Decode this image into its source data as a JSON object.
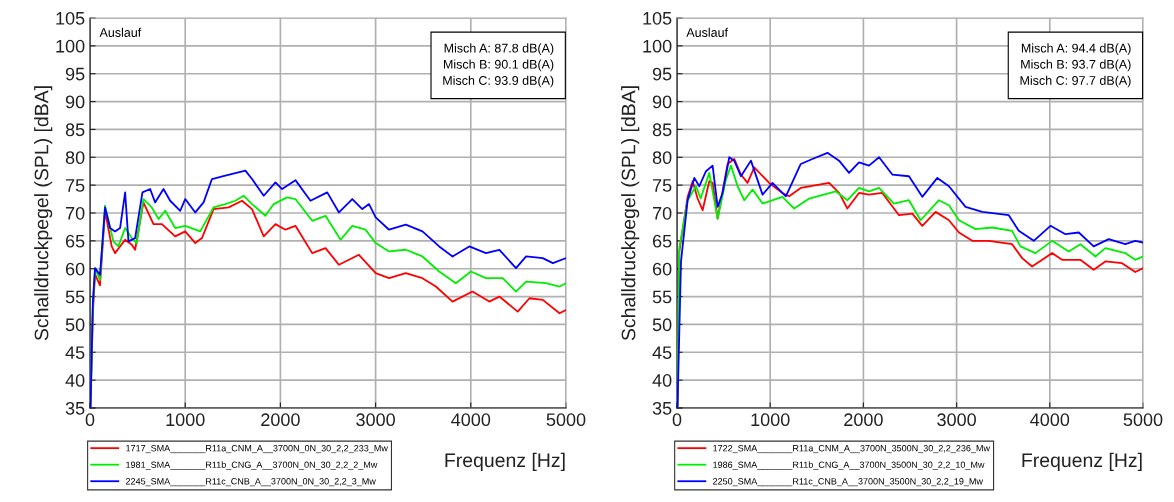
{
  "chart_data": [
    {
      "type": "line",
      "xlabel": "Frequenz [Hz]",
      "ylabel": "Schalldruckpegel (SPL) [dBA]",
      "annotations": [
        "Auslauf",
        "Misch A: 87.8 dB(A)\nMisch B: 90.1 dB(A)\nMisch C: 93.9 dB(A)"
      ],
      "xlim": [
        0,
        5000
      ],
      "xticks": [
        0,
        1000,
        2000,
        3000,
        4000,
        5000
      ],
      "ylim": [
        35,
        105
      ],
      "yticks": [
        35,
        40,
        45,
        50,
        55,
        60,
        65,
        70,
        75,
        80,
        85,
        90,
        95,
        100,
        105
      ],
      "grid": true,
      "legend": "bottom",
      "line_style": "solid",
      "marker": "none",
      "series": [
        {
          "name": "1717_SMA_______R11a_CNM_A__3700N_0N_30_2,2_233_Mw",
          "color": "#ff0000",
          "x": [
            5,
            30,
            53,
            105,
            158,
            228,
            263,
            369,
            439,
            474,
            561,
            667,
            755,
            895,
            1000,
            1106,
            1176,
            1298,
            1456,
            1597,
            1702,
            1825,
            1948,
            2053,
            2158,
            2334,
            2474,
            2615,
            2825,
            3001,
            3141,
            3317,
            3492,
            3633,
            3808,
            4018,
            4194,
            4300,
            4493,
            4616,
            4756,
            4932,
            5000
          ],
          "values": [
            35,
            52,
            59,
            57,
            70.4,
            64.0,
            62.8,
            65.2,
            64.3,
            63.4,
            71.9,
            68.0,
            68.0,
            65.8,
            66.7,
            64.6,
            65.5,
            70.7,
            71.0,
            72.2,
            70.7,
            65.8,
            68.0,
            67.0,
            67.7,
            62.8,
            63.7,
            60.7,
            62.5,
            59.2,
            58.3,
            59.2,
            58.3,
            56.8,
            54.1,
            55.9,
            54.1,
            55.0,
            52.3,
            54.7,
            54.4,
            52.0,
            52.6
          ]
        },
        {
          "name": "1981_SMA_______R11b_CNG_A__3700N_0N_30_2,2_2_Mw",
          "color": "#00ee00",
          "x": [
            5,
            30,
            53,
            105,
            158,
            246,
            298,
            369,
            439,
            491,
            561,
            649,
            720,
            790,
            895,
            1000,
            1158,
            1298,
            1421,
            1527,
            1614,
            1702,
            1842,
            1930,
            2070,
            2158,
            2334,
            2474,
            2632,
            2755,
            2895,
            3001,
            3141,
            3317,
            3492,
            3668,
            3843,
            4001,
            4159,
            4335,
            4475,
            4581,
            4791,
            4932,
            5000
          ],
          "values": [
            35,
            53,
            60,
            58,
            71.3,
            64.9,
            64.0,
            67.3,
            65.5,
            64.6,
            72.5,
            71.0,
            68.9,
            70.4,
            67.3,
            67.7,
            66.7,
            71.0,
            71.6,
            72.2,
            73.1,
            71.6,
            69.5,
            71.6,
            72.8,
            72.5,
            68.6,
            69.5,
            65.2,
            67.7,
            67.0,
            64.6,
            63.1,
            63.4,
            62.2,
            59.5,
            57.4,
            59.5,
            58.3,
            58.3,
            55.9,
            57.7,
            57.4,
            56.8,
            57.4
          ]
        },
        {
          "name": "2245_SMA_______R11c_CNB_A__3700N_0N_30_2,2_3_Mw",
          "color": "#0000ff",
          "x": [
            5,
            30,
            53,
            105,
            158,
            211,
            263,
            316,
            369,
            404,
            474,
            551,
            632,
            684,
            772,
            842,
            948,
            1000,
            1106,
            1193,
            1281,
            1421,
            1632,
            1702,
            1825,
            1948,
            2018,
            2158,
            2316,
            2492,
            2615,
            2755,
            2860,
            2931,
            3001,
            3141,
            3317,
            3492,
            3668,
            3808,
            3984,
            4159,
            4300,
            4475,
            4581,
            4756,
            4862,
            5000
          ],
          "values": [
            35,
            54,
            60.1,
            58.9,
            71,
            67.3,
            66.7,
            67.3,
            73.7,
            64.9,
            65.5,
            73.7,
            74.3,
            71.9,
            74.3,
            72.2,
            70.4,
            72.5,
            70.1,
            71.9,
            76.1,
            76.7,
            77.6,
            76.1,
            73.1,
            75.5,
            74.3,
            75.9,
            72.2,
            73.7,
            70.1,
            72.5,
            70.7,
            71.6,
            69.2,
            67.0,
            67.9,
            66.7,
            64.0,
            62.2,
            64.0,
            62.8,
            63.4,
            60.1,
            62.2,
            61.9,
            61.0,
            61.9
          ]
        }
      ]
    },
    {
      "type": "line",
      "xlabel": "Frequenz [Hz]",
      "ylabel": "Schalldruckpegel (SPL) [dBA]",
      "annotations": [
        "Auslauf",
        "Misch A: 94.4 dB(A)\nMisch B: 93.7 dB(A)\nMisch C: 97.7 dB(A)"
      ],
      "xlim": [
        0,
        5000
      ],
      "xticks": [
        0,
        1000,
        2000,
        3000,
        4000,
        5000
      ],
      "ylim": [
        35,
        105
      ],
      "yticks": [
        35,
        40,
        45,
        50,
        55,
        60,
        65,
        70,
        75,
        80,
        85,
        90,
        95,
        100,
        105
      ],
      "grid": true,
      "legend": "bottom",
      "line_style": "solid",
      "marker": "none",
      "series": [
        {
          "name": "1722_SMA_______R11a_CNM_A__3700N_3500N_30_2,2_236_Mw",
          "color": "#ff0000",
          "x": [
            5,
            25,
            114,
            168,
            221,
            275,
            346,
            382,
            436,
            543,
            614,
            686,
            757,
            829,
            989,
            1132,
            1203,
            1328,
            1632,
            1739,
            1828,
            1953,
            2060,
            2203,
            2382,
            2525,
            2632,
            2775,
            2918,
            3025,
            3168,
            3346,
            3596,
            3703,
            3810,
            4025,
            4132,
            4328,
            4471,
            4596,
            4775,
            4917,
            5000
          ],
          "values": [
            35,
            63.1,
            72.9,
            75.7,
            72.6,
            70.5,
            75.7,
            75.4,
            69.0,
            78.8,
            79.7,
            76.9,
            75.4,
            78.2,
            75.4,
            73.6,
            73.0,
            74.5,
            75.4,
            73.6,
            70.8,
            73.6,
            73.3,
            73.6,
            69.6,
            69.9,
            67.7,
            70.2,
            68.7,
            66.5,
            65.0,
            65.0,
            64.4,
            61.9,
            60.4,
            62.8,
            61.6,
            61.6,
            59.8,
            61.3,
            61.0,
            59.4,
            60.1
          ]
        },
        {
          "name": "1986_SMA_______R11b_CNG_A__3700N_3500N_30_2,2_10_Mw",
          "color": "#00ee00",
          "x": [
            5,
            25,
            114,
            204,
            254,
            346,
            436,
            525,
            579,
            650,
            721,
            811,
            918,
            1132,
            1257,
            1418,
            1703,
            1828,
            1953,
            2060,
            2168,
            2328,
            2489,
            2614,
            2810,
            2918,
            3025,
            3203,
            3382,
            3596,
            3685,
            3846,
            4025,
            4203,
            4328,
            4489,
            4596,
            4810,
            4917,
            5000
          ],
          "values": [
            35,
            63.7,
            72.3,
            74.8,
            72.6,
            77.2,
            69.0,
            76.0,
            78.5,
            74.8,
            72.3,
            74.2,
            71.7,
            72.9,
            70.8,
            72.6,
            73.9,
            72.3,
            74.5,
            73.9,
            74.5,
            71.7,
            72.3,
            68.7,
            72.3,
            71.4,
            68.7,
            67.1,
            67.4,
            66.8,
            64.0,
            62.8,
            65.0,
            63.1,
            64.4,
            62.2,
            63.7,
            62.8,
            61.6,
            62.2
          ]
        },
        {
          "name": "2250_SMA_______R11c_CNB_A__3700N_3500N_30_2,2_19_Mw",
          "color": "#0000ff",
          "x": [
            5,
            43,
            114,
            186,
            239,
            311,
            382,
            436,
            489,
            561,
            614,
            686,
            793,
            918,
            1025,
            1168,
            1328,
            1453,
            1614,
            1739,
            1846,
            1953,
            2060,
            2168,
            2310,
            2489,
            2632,
            2793,
            2918,
            3096,
            3275,
            3560,
            3667,
            3828,
            4007,
            4168,
            4311,
            4471,
            4632,
            4810,
            4917,
            5000
          ],
          "values": [
            35,
            61.3,
            72.3,
            76.3,
            74.8,
            77.5,
            78.5,
            71.1,
            73.6,
            80,
            79.4,
            76.6,
            79.4,
            73.3,
            75.4,
            73.0,
            78.8,
            79.7,
            80.8,
            79.4,
            77.2,
            79.1,
            78.5,
            80,
            76.9,
            76.6,
            72.9,
            76.3,
            74.8,
            71.1,
            70.2,
            69.6,
            66.8,
            65.0,
            67.7,
            66.2,
            66.5,
            64.0,
            65.3,
            64.4,
            65.0,
            64.7
          ]
        }
      ]
    }
  ]
}
